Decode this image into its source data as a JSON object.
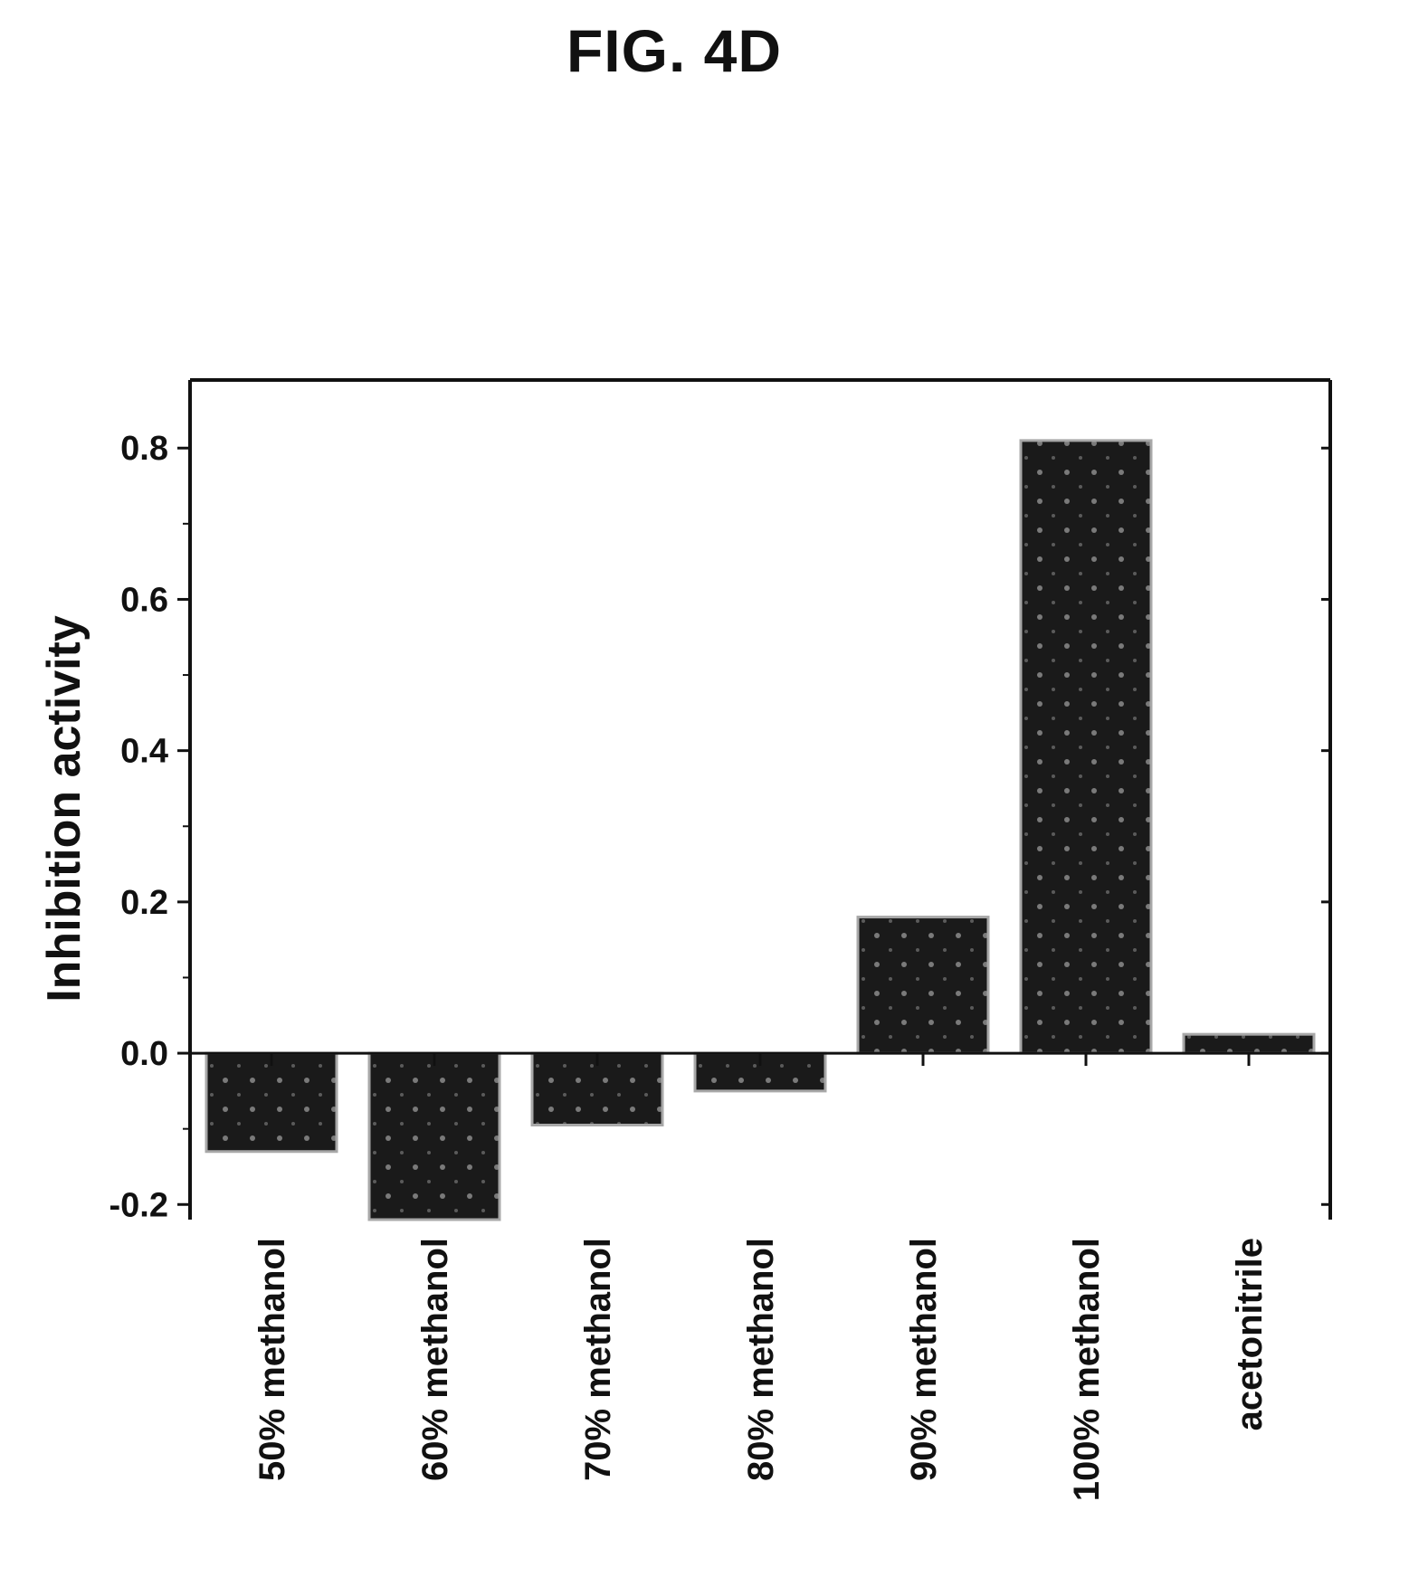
{
  "figure_title": "FIG. 4D",
  "chart_data": {
    "type": "bar",
    "title": "",
    "xlabel": "",
    "ylabel": "Inhibition activity",
    "categories": [
      "50% methanol",
      "60% methanol",
      "70% methanol",
      "80% methanol",
      "90% methanol",
      "100% methanol",
      "acetonitrile"
    ],
    "values": [
      -0.13,
      -0.22,
      -0.095,
      -0.05,
      0.18,
      0.81,
      0.025
    ],
    "ylim": [
      -0.22,
      0.89
    ],
    "yticks": [
      "-0.2",
      "0.0",
      "0.2",
      "0.4",
      "0.6",
      "0.8"
    ],
    "grid": false,
    "legend": "none",
    "colors": {
      "bar_fill": "#1a1a1a",
      "bar_edge": "#a8a8a8",
      "axis": "#111111"
    }
  }
}
